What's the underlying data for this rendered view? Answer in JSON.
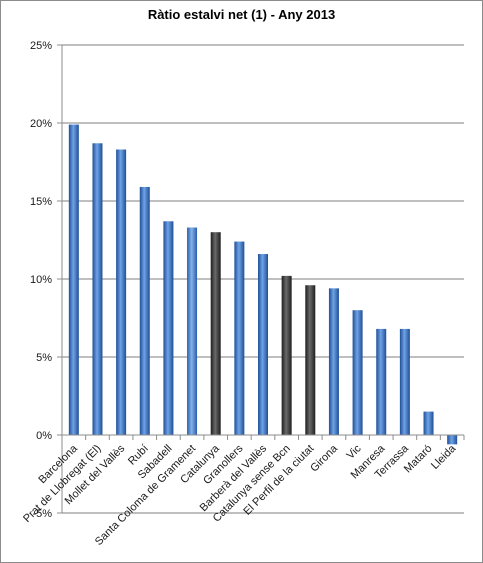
{
  "chart_data": {
    "type": "bar",
    "title": "Ràtio estalvi net (1) - Any 2013",
    "xlabel": "",
    "ylabel": "",
    "ylim": [
      -0.05,
      0.25
    ],
    "y_ticks": [
      {
        "value": -0.05,
        "label": "-5%"
      },
      {
        "value": 0.0,
        "label": "0%"
      },
      {
        "value": 0.05,
        "label": "5%"
      },
      {
        "value": 0.1,
        "label": "10%"
      },
      {
        "value": 0.15,
        "label": "15%"
      },
      {
        "value": 0.2,
        "label": "20%"
      },
      {
        "value": 0.25,
        "label": "25%"
      }
    ],
    "grid": true,
    "legend": "none",
    "categories": [
      "Barcelona",
      "Prat de Llobregat (El)",
      "Mollet del Vallès",
      "Rubí",
      "Sabadell",
      "Santa Coloma de Gramenet",
      "Catalunya",
      "Granollers",
      "Barberà del Vallès",
      "Catalunya sense Bcn",
      "El Perfil de la ciutat",
      "Girona",
      "Vic",
      "Manresa",
      "Terrassa",
      "Mataró",
      "Lleida"
    ],
    "values": [
      0.199,
      0.187,
      0.183,
      0.159,
      0.137,
      0.133,
      0.13,
      0.124,
      0.116,
      0.102,
      0.096,
      0.094,
      0.08,
      0.068,
      0.068,
      0.015,
      -0.006
    ],
    "bar_colors": [
      "#2e6bbd",
      "#2e6bbd",
      "#2e6bbd",
      "#2e6bbd",
      "#2e6bbd",
      "#4a80c8",
      "#4a4a4a",
      "#2e6bbd",
      "#2e6bbd",
      "#3a3a3a",
      "#3a3a3a",
      "#2e6bbd",
      "#2e6bbd",
      "#2e6bbd",
      "#2e6bbd",
      "#2e6bbd",
      "#2e6bbd"
    ],
    "colors": {
      "axis": "#8c8c8c",
      "grid": "#7f7f7f",
      "bar_blue": "#2e6bbd",
      "bar_dark": "#3a3a3a"
    }
  }
}
